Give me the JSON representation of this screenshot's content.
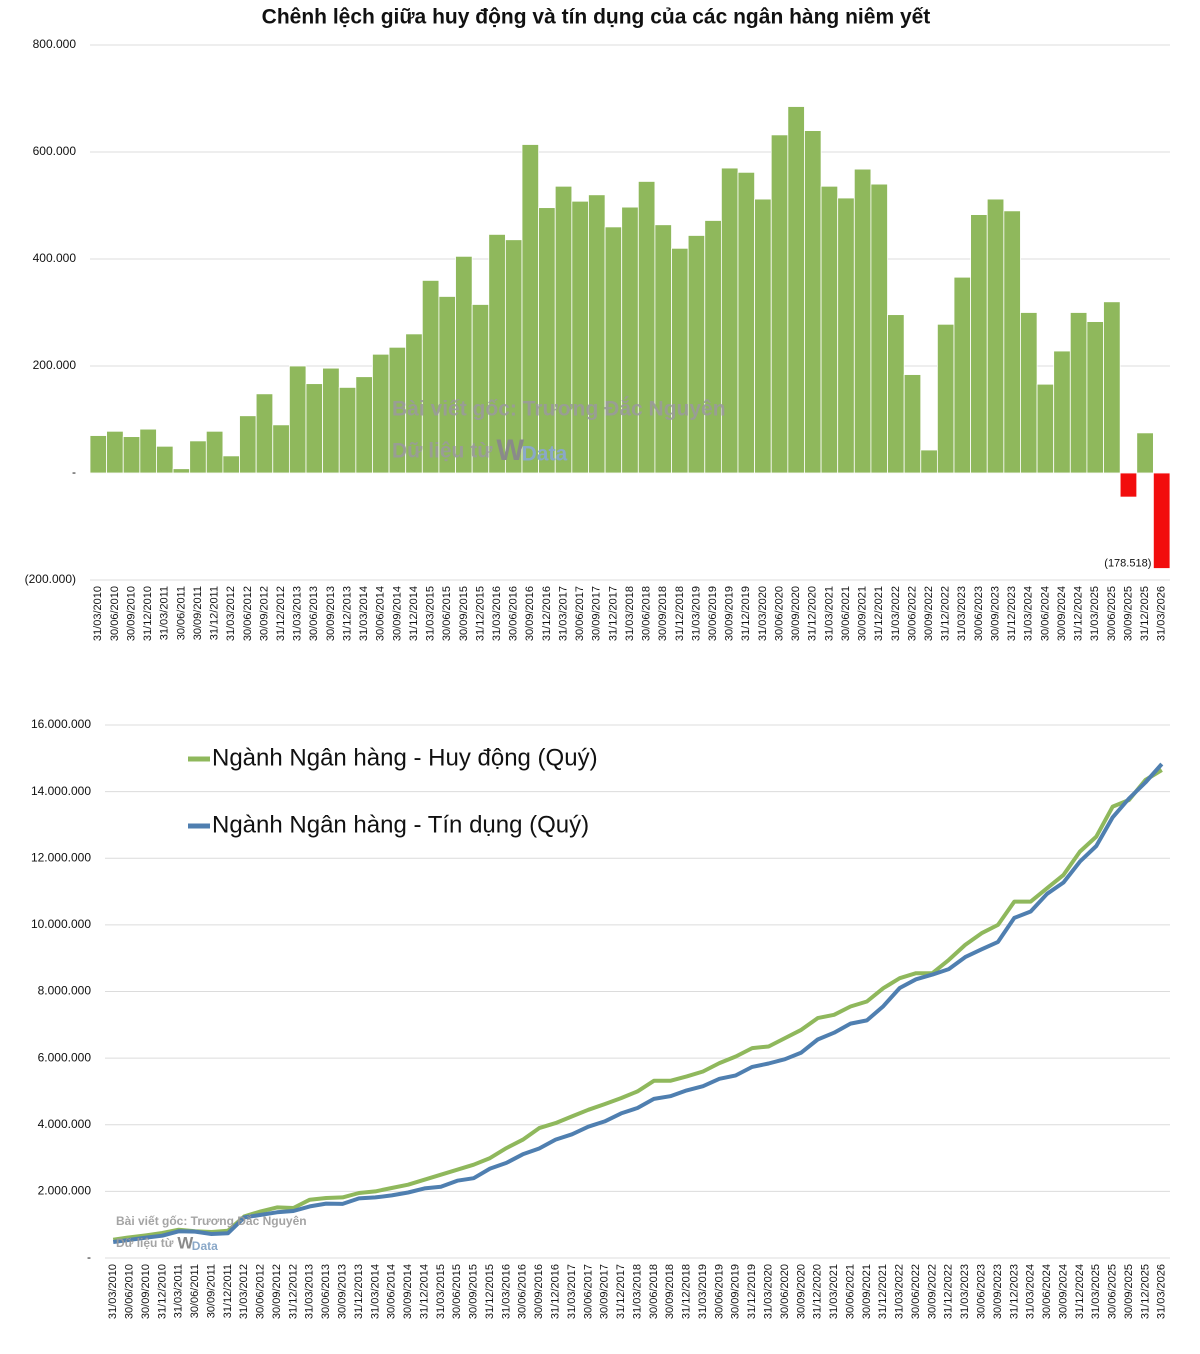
{
  "chart_data": [
    {
      "type": "bar",
      "title": "Chênh lệch giữa huy động và tín dụng của các ngân hàng niêm yết",
      "categories": [
        "31/03/2010",
        "30/06/2010",
        "30/09/2010",
        "31/12/2010",
        "31/03/2011",
        "30/06/2011",
        "30/09/2011",
        "31/12/2011",
        "31/03/2012",
        "30/06/2012",
        "30/09/2012",
        "31/12/2012",
        "31/03/2013",
        "30/06/2013",
        "30/09/2013",
        "31/12/2013",
        "31/03/2014",
        "30/06/2014",
        "30/09/2014",
        "31/12/2014",
        "31/03/2015",
        "30/06/2015",
        "30/09/2015",
        "31/12/2015",
        "31/03/2016",
        "30/06/2016",
        "30/09/2016",
        "31/12/2016",
        "31/03/2017",
        "30/06/2017",
        "30/09/2017",
        "31/12/2017",
        "31/03/2018",
        "30/06/2018",
        "30/09/2018",
        "31/12/2018",
        "31/03/2019",
        "30/06/2019",
        "30/09/2019",
        "31/12/2019",
        "31/03/2020",
        "30/06/2020",
        "30/09/2020",
        "31/12/2020",
        "31/03/2021",
        "30/06/2021",
        "30/09/2021",
        "31/12/2021",
        "31/03/2022",
        "30/06/2022",
        "30/09/2022",
        "31/12/2022",
        "31/03/2023",
        "30/06/2023",
        "30/09/2023",
        "31/12/2023",
        "31/03/2024",
        "30/06/2024",
        "30/09/2024",
        "31/12/2024",
        "31/03/2025",
        "30/06/2025",
        "30/09/2025",
        "31/12/2025",
        "31/03/2026"
      ],
      "values": [
        70000,
        78000,
        68000,
        82000,
        50000,
        8000,
        60000,
        78000,
        32000,
        107000,
        148000,
        90000,
        200000,
        167000,
        196000,
        160000,
        180000,
        222000,
        235000,
        260000,
        360000,
        330000,
        405000,
        315000,
        446000,
        436000,
        614000,
        496000,
        536000,
        508000,
        520000,
        460000,
        497000,
        545000,
        464000,
        420000,
        444000,
        472000,
        570000,
        562000,
        512000,
        632000,
        685000,
        640000,
        536000,
        514000,
        568000,
        540000,
        296000,
        184000,
        43000,
        278000,
        366000,
        483000,
        512000,
        490000,
        300000,
        166000,
        228000,
        300000,
        283000,
        320000,
        -45000,
        75000,
        -178518
      ],
      "value_labels": [
        null,
        null,
        null,
        null,
        null,
        null,
        null,
        null,
        null,
        null,
        null,
        null,
        null,
        null,
        null,
        null,
        null,
        null,
        null,
        null,
        null,
        null,
        null,
        null,
        null,
        null,
        null,
        null,
        null,
        null,
        null,
        null,
        null,
        null,
        null,
        null,
        null,
        null,
        null,
        null,
        null,
        null,
        null,
        null,
        null,
        null,
        null,
        null,
        null,
        null,
        null,
        null,
        null,
        null,
        null,
        null,
        null,
        null,
        null,
        null,
        null,
        null,
        null,
        null,
        "(178.518)"
      ],
      "color": "#8fb85c",
      "negative_color": "#f20d0d",
      "ylim": [
        -200000,
        800000
      ],
      "yticks": [
        {
          "value": -200000,
          "label": "(200.000)"
        },
        {
          "value": 0,
          "label": "-"
        },
        {
          "value": 200000,
          "label": "200.000"
        },
        {
          "value": 400000,
          "label": "400.000"
        },
        {
          "value": 600000,
          "label": "600.000"
        },
        {
          "value": 800000,
          "label": "800.000"
        }
      ],
      "grid": true,
      "annotations": [
        "Bài viết gốc: Trương Đắc Nguyên",
        "Dữ liệu từ",
        "Data"
      ]
    },
    {
      "type": "line",
      "categories": [
        "31/03/2010",
        "30/06/2010",
        "30/09/2010",
        "31/12/2010",
        "31/03/2011",
        "30/06/2011",
        "30/09/2011",
        "31/12/2011",
        "31/03/2012",
        "30/06/2012",
        "30/09/2012",
        "31/12/2012",
        "31/03/2013",
        "30/06/2013",
        "30/09/2013",
        "31/12/2013",
        "31/03/2014",
        "30/06/2014",
        "30/09/2014",
        "31/12/2014",
        "31/03/2015",
        "30/06/2015",
        "30/09/2015",
        "31/12/2015",
        "31/03/2016",
        "30/06/2016",
        "30/09/2016",
        "31/12/2016",
        "31/03/2017",
        "30/06/2017",
        "30/09/2017",
        "31/12/2017",
        "31/03/2018",
        "30/06/2018",
        "30/09/2018",
        "31/12/2018",
        "31/03/2019",
        "30/06/2019",
        "30/09/2019",
        "31/12/2019",
        "31/03/2020",
        "30/06/2020",
        "30/09/2020",
        "31/12/2020",
        "31/03/2021",
        "30/06/2021",
        "30/09/2021",
        "31/12/2021",
        "31/03/2022",
        "30/06/2022",
        "30/09/2022",
        "31/12/2022",
        "31/03/2023",
        "30/06/2023",
        "30/09/2023",
        "31/12/2023",
        "31/03/2024",
        "30/06/2024",
        "30/09/2024",
        "31/12/2024",
        "31/03/2025",
        "30/06/2025",
        "30/09/2025",
        "31/12/2025",
        "31/03/2026"
      ],
      "series": [
        {
          "name": "Ngành Ngân hàng - Huy động (Quý)",
          "color": "#8fb85c",
          "values": [
            550000,
            620000,
            680000,
            750000,
            850000,
            800000,
            780000,
            820000,
            1250000,
            1400000,
            1520000,
            1500000,
            1750000,
            1800000,
            1820000,
            1950000,
            2000000,
            2100000,
            2200000,
            2350000,
            2500000,
            2650000,
            2800000,
            3000000,
            3300000,
            3550000,
            3900000,
            4050000,
            4250000,
            4450000,
            4620000,
            4800000,
            5000000,
            5320000,
            5320000,
            5450000,
            5600000,
            5850000,
            6050000,
            6300000,
            6350000,
            6600000,
            6850000,
            7200000,
            7300000,
            7550000,
            7700000,
            8100000,
            8400000,
            8550000,
            8550000,
            8950000,
            9400000,
            9750000,
            10000000,
            10700000,
            10700000,
            11100000,
            11500000,
            12200000,
            12650000,
            13550000,
            13750000,
            14350000,
            14650000
          ]
        },
        {
          "name": "Ngành Ngân hàng - Tín dụng (Quý)",
          "color": "#4f7fb0",
          "values": [
            480000,
            542000,
            612000,
            668000,
            800000,
            792000,
            720000,
            742000,
            1218000,
            1293000,
            1372000,
            1410000,
            1550000,
            1633000,
            1624000,
            1790000,
            1820000,
            1878000,
            1965000,
            2090000,
            2140000,
            2320000,
            2395000,
            2685000,
            2854000,
            3114000,
            3286000,
            3554000,
            3714000,
            3942000,
            4100000,
            4340000,
            4503000,
            4775000,
            4856000,
            5030000,
            5156000,
            5378000,
            5480000,
            5738000,
            5838000,
            5968000,
            6165000,
            6560000,
            6764000,
            7036000,
            7132000,
            7560000,
            8104000,
            8366000,
            8507000,
            8672000,
            9034000,
            9267000,
            9488000,
            10210000,
            10400000,
            10934000,
            11272000,
            11900000,
            12367000,
            13230000,
            13795000,
            14275000,
            14828518
          ]
        }
      ],
      "ylim": [
        0,
        16000000
      ],
      "yticks": [
        {
          "value": 0,
          "label": "-"
        },
        {
          "value": 2000000,
          "label": "2.000.000"
        },
        {
          "value": 4000000,
          "label": "4.000.000"
        },
        {
          "value": 6000000,
          "label": "6.000.000"
        },
        {
          "value": 8000000,
          "label": "8.000.000"
        },
        {
          "value": 10000000,
          "label": "10.000.000"
        },
        {
          "value": 12000000,
          "label": "12.000.000"
        },
        {
          "value": 14000000,
          "label": "14.000.000"
        },
        {
          "value": 16000000,
          "label": "16.000.000"
        }
      ],
      "grid": true,
      "legend": "upper left",
      "annotations": [
        "Bài viết gốc: Trương Đắc Nguyên",
        "Dữ liệu từ",
        "Data"
      ]
    }
  ]
}
